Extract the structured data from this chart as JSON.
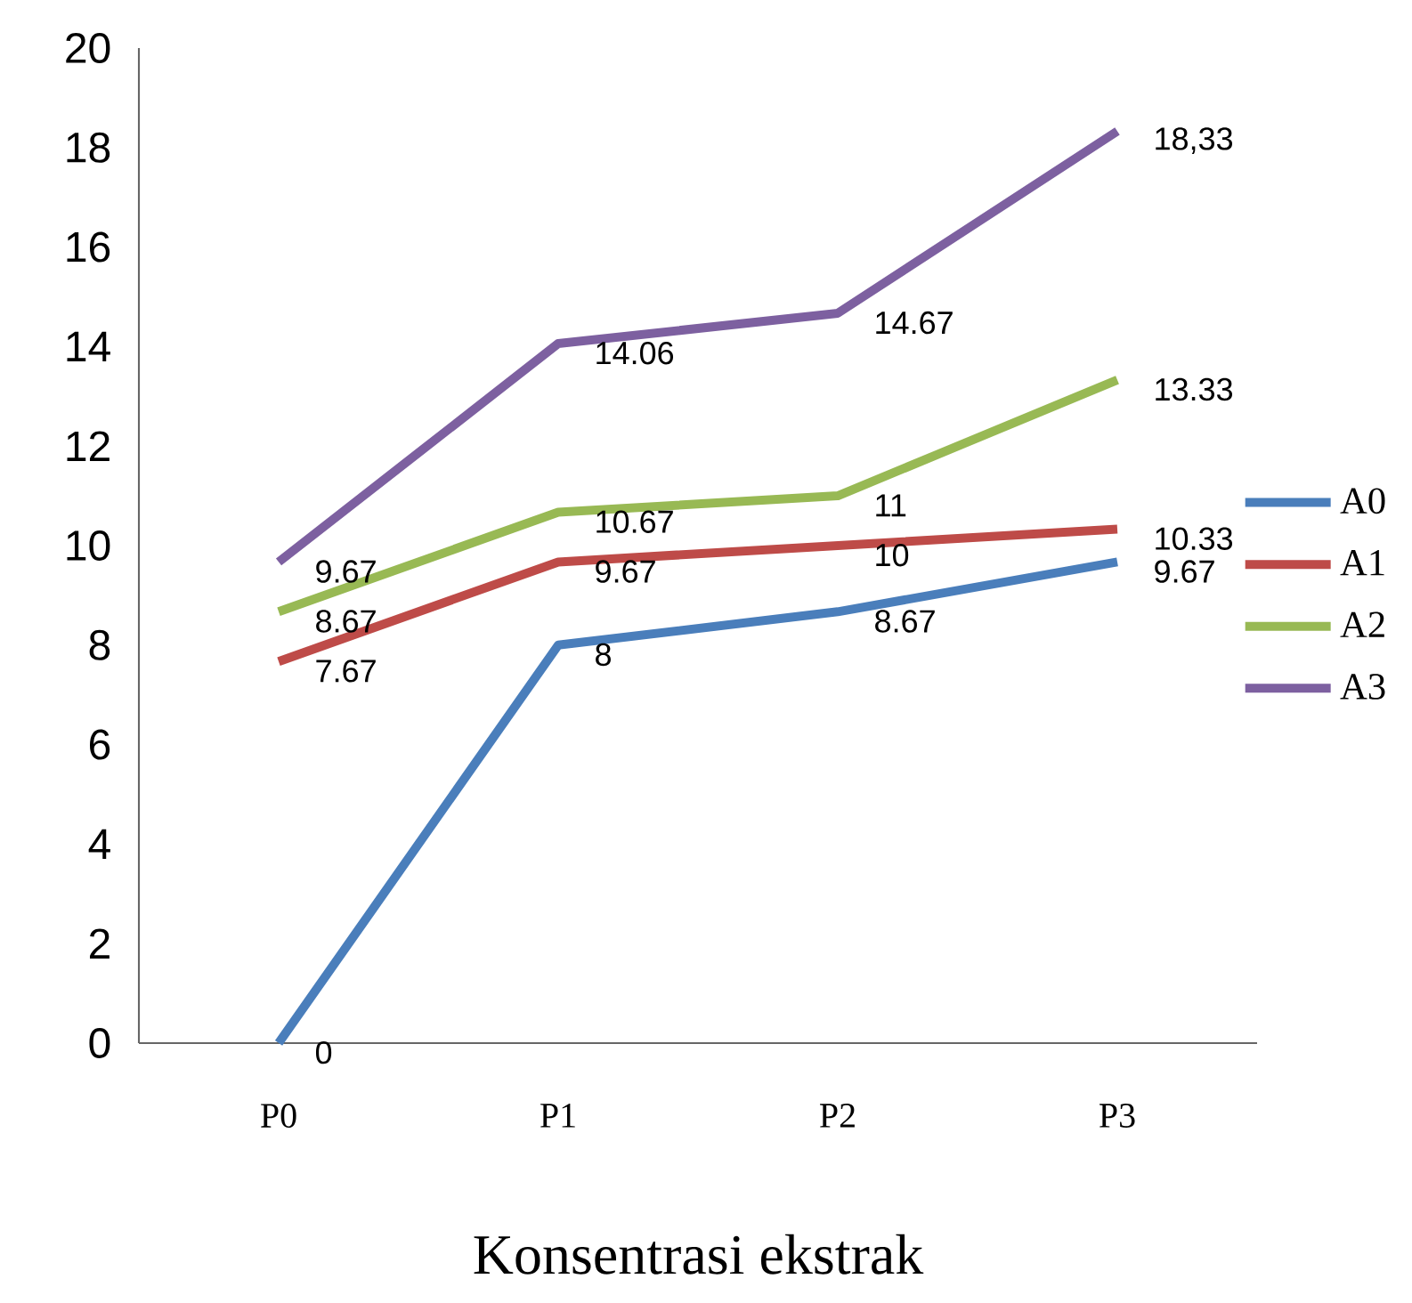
{
  "chart_data": {
    "type": "line",
    "xlabel": "Konsentrasi ekstrak",
    "categories": [
      "P0",
      "P1",
      "P2",
      "P3"
    ],
    "series": [
      {
        "name": "A0",
        "color": "#4a7ebb",
        "values": [
          0,
          8,
          8.67,
          9.67
        ],
        "value_labels": [
          "0",
          "8",
          "8.67",
          "9.67"
        ]
      },
      {
        "name": "A1",
        "color": "#be4b48",
        "values": [
          7.67,
          9.67,
          10,
          10.33
        ],
        "value_labels": [
          "7.67",
          "9.67",
          "10",
          "10.33"
        ]
      },
      {
        "name": "A2",
        "color": "#98b954",
        "values": [
          8.67,
          10.67,
          11,
          13.33
        ],
        "value_labels": [
          "8.67",
          "10.67",
          "11",
          "13.33"
        ]
      },
      {
        "name": "A3",
        "color": "#7d60a0",
        "values": [
          9.67,
          14.06,
          14.67,
          18.33
        ],
        "value_labels": [
          "9.67",
          "14.06",
          "14.67",
          "18,33"
        ]
      }
    ],
    "ylim": [
      0,
      20
    ],
    "yticks": [
      0,
      2,
      4,
      6,
      8,
      10,
      12,
      14,
      16,
      18,
      20
    ],
    "grid": false,
    "legend": "right",
    "marker": "none",
    "line_style": "solid"
  }
}
